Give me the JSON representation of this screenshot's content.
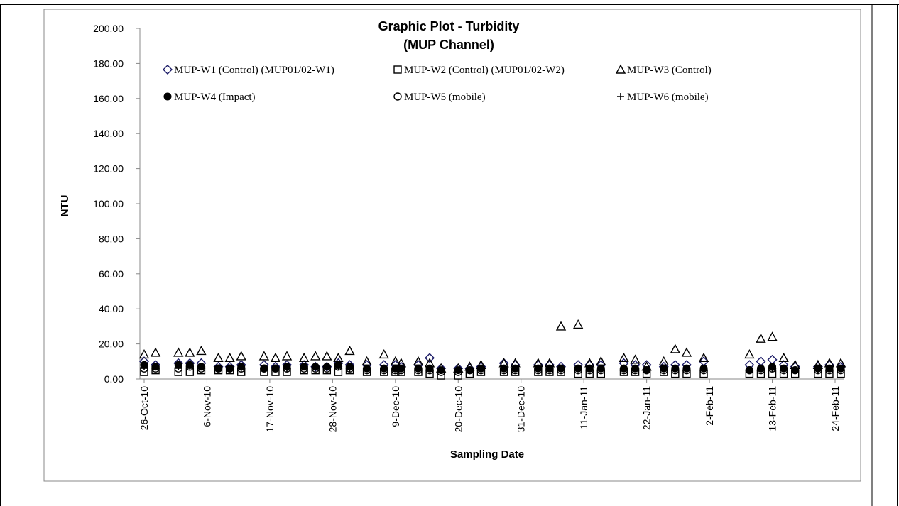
{
  "chart_data": {
    "type": "scatter",
    "title": "Graphic Plot - Turbidity",
    "subtitle": "(MUP Channel)",
    "xlabel": "Sampling Date",
    "ylabel": "NTU",
    "ylim": [
      0,
      200
    ],
    "y_ticks": [
      "0.00",
      "20.00",
      "40.00",
      "60.00",
      "80.00",
      "100.00",
      "120.00",
      "140.00",
      "160.00",
      "180.00",
      "200.00"
    ],
    "x_ticks": [
      "26-Oct-10",
      "6-Nov-10",
      "17-Nov-10",
      "28-Nov-10",
      "9-Dec-10",
      "20-Dec-10",
      "31-Dec-10",
      "11-Jan-11",
      "22-Jan-11",
      "2-Feb-11",
      "13-Feb-11",
      "24-Feb-11"
    ],
    "x_start": "2010-10-26",
    "x_end": "2011-02-24",
    "grid": false,
    "legend_position": "top",
    "sampling_dates": [
      "2010-10-26",
      "2010-10-28",
      "2010-11-01",
      "2010-11-03",
      "2010-11-05",
      "2010-11-08",
      "2010-11-10",
      "2010-11-12",
      "2010-11-16",
      "2010-11-18",
      "2010-11-20",
      "2010-11-23",
      "2010-11-25",
      "2010-11-27",
      "2010-11-29",
      "2010-12-01",
      "2010-12-04",
      "2010-12-07",
      "2010-12-09",
      "2010-12-10",
      "2010-12-13",
      "2010-12-15",
      "2010-12-17",
      "2010-12-20",
      "2010-12-22",
      "2010-12-24",
      "2010-12-28",
      "2010-12-30",
      "2011-01-03",
      "2011-01-05",
      "2011-01-07",
      "2011-01-10",
      "2011-01-12",
      "2011-01-14",
      "2011-01-18",
      "2011-01-20",
      "2011-01-22",
      "2011-01-25",
      "2011-01-27",
      "2011-01-29",
      "2011-02-01",
      "2011-02-09",
      "2011-02-11",
      "2011-02-13",
      "2011-02-15",
      "2011-02-17",
      "2011-02-21",
      "2011-02-23",
      "2011-02-25"
    ],
    "series": [
      {
        "name": "MUP-W1 (Control) (MUP01/02-W1)",
        "marker": "diamond-open",
        "color": "#1a1a66",
        "values": [
          10,
          8,
          9,
          9,
          9,
          7,
          7,
          8,
          8,
          7,
          8,
          8,
          7,
          7,
          9,
          8,
          8,
          8,
          8,
          7,
          8,
          12,
          6,
          6,
          6,
          7,
          9,
          8,
          8,
          8,
          7,
          8,
          8,
          8,
          9,
          8,
          8,
          7,
          8,
          8,
          10,
          8,
          10,
          11,
          8,
          7,
          7,
          8,
          7
        ]
      },
      {
        "name": "MUP-W2 (Control) (MUP01/02-W2)",
        "marker": "square-open",
        "color": "#000000",
        "values": [
          4,
          5,
          4,
          4,
          5,
          5,
          5,
          4,
          4,
          4,
          4,
          5,
          5,
          5,
          4,
          5,
          4,
          4,
          4,
          4,
          4,
          3,
          2,
          2,
          3,
          4,
          4,
          4,
          4,
          4,
          4,
          3,
          3,
          3,
          4,
          4,
          3,
          4,
          3,
          3,
          3,
          3,
          3,
          3,
          3,
          3,
          3,
          3,
          3
        ]
      },
      {
        "name": "MUP-W3 (Control)",
        "marker": "triangle-open",
        "color": "#000000",
        "values": [
          14,
          15,
          15,
          15,
          16,
          12,
          12,
          13,
          13,
          12,
          13,
          12,
          13,
          13,
          12,
          16,
          10,
          14,
          10,
          9,
          10,
          9,
          6,
          6,
          7,
          8,
          9,
          9,
          9,
          9,
          30,
          31,
          9,
          10,
          12,
          11,
          7,
          10,
          17,
          15,
          12,
          14,
          23,
          24,
          12,
          8,
          8,
          9,
          9
        ]
      },
      {
        "name": "MUP-W4 (Impact)",
        "marker": "circle-filled",
        "color": "#000000",
        "values": [
          8,
          7,
          8,
          8,
          7,
          6,
          6,
          7,
          6,
          6,
          7,
          7,
          7,
          7,
          8,
          7,
          6,
          6,
          6,
          6,
          6,
          6,
          5,
          5,
          5,
          6,
          6,
          6,
          6,
          6,
          6,
          6,
          6,
          6,
          6,
          6,
          5,
          6,
          6,
          6,
          6,
          5,
          6,
          7,
          6,
          5,
          6,
          6,
          6
        ]
      },
      {
        "name": "MUP-W5 (mobile)",
        "marker": "circle-open",
        "color": "#000000",
        "values": [
          6,
          6,
          6,
          7,
          6,
          6,
          6,
          6,
          6,
          6,
          6,
          6,
          6,
          6,
          7,
          6,
          5,
          5,
          5,
          5,
          5,
          5,
          4,
          4,
          5,
          5,
          5,
          5,
          5,
          5,
          5,
          5,
          5,
          5,
          5,
          5,
          5,
          5,
          5,
          5,
          5,
          5,
          5,
          6,
          5,
          5,
          5,
          5,
          5
        ]
      },
      {
        "name": "MUP-W6 (mobile)",
        "marker": "plus",
        "color": "#000000",
        "values": [
          7,
          7,
          7,
          7,
          7,
          6,
          6,
          6,
          6,
          6,
          6,
          7,
          7,
          7,
          7,
          6,
          6,
          6,
          6,
          6,
          6,
          6,
          5,
          5,
          5,
          6,
          6,
          6,
          6,
          6,
          6,
          6,
          6,
          6,
          6,
          6,
          5,
          6,
          6,
          6,
          6,
          5,
          6,
          6,
          6,
          5,
          5,
          6,
          6
        ]
      }
    ]
  }
}
